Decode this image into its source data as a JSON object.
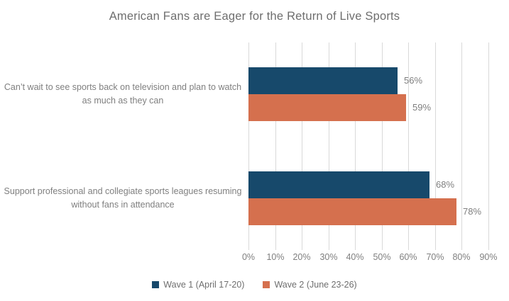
{
  "chart_data": {
    "type": "bar",
    "orientation": "horizontal",
    "title": "American Fans are Eager for the Return of Live Sports",
    "categories": [
      "Can’t wait to see sports back on television and plan to watch as much as they can",
      "Support professional and collegiate sports leagues resuming without fans in attendance"
    ],
    "series": [
      {
        "name": "Wave 1 (April 17-20)",
        "color": "#17496b",
        "values": [
          56,
          68
        ],
        "value_labels": [
          "56%",
          "68%"
        ]
      },
      {
        "name": "Wave 2 (June 23-26)",
        "color": "#d5704e",
        "values": [
          59,
          78
        ],
        "value_labels": [
          "59%",
          "78%"
        ]
      }
    ],
    "xlim": [
      0,
      90
    ],
    "x_tick_step": 10,
    "x_ticks": [
      "0%",
      "10%",
      "20%",
      "30%",
      "40%",
      "50%",
      "60%",
      "70%",
      "80%",
      "90%"
    ],
    "grid": "vertical-only",
    "legend_position": "bottom-center",
    "colors": {
      "background": "#ffffff",
      "gridline": "#d9d9d9",
      "title_text": "#6e6e6e",
      "axis_text": "#7f7f7f",
      "value_label_text": "#7f7f7f",
      "category_text": "#7f7f7f",
      "legend_text": "#6e6e6e"
    }
  }
}
